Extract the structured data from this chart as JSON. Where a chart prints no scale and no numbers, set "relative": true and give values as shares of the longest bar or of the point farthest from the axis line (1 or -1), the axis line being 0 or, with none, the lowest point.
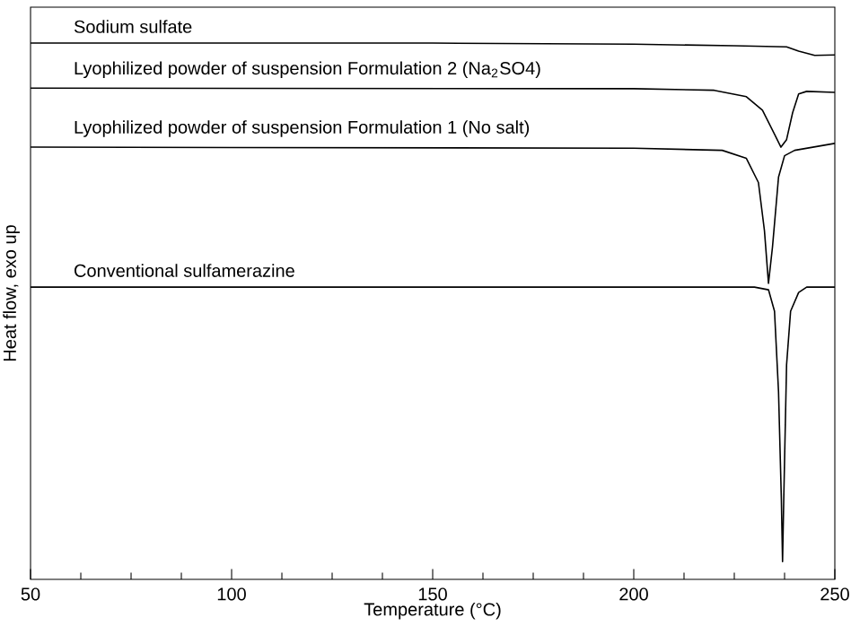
{
  "chart_data": {
    "type": "line",
    "xlabel": "Temperature (°C)",
    "ylabel": "Heat flow, exo up",
    "relative": true,
    "xlim": [
      50,
      250
    ],
    "xticks": [
      50,
      100,
      150,
      200,
      250
    ],
    "legend": false,
    "marker": "none",
    "line_style": "solid",
    "grid": false,
    "series": [
      {
        "name": "Sodium sulfate",
        "color": "#000000",
        "x": [
          50,
          150,
          200,
          225,
          238,
          241,
          245,
          250
        ],
        "values": [
          1.0,
          1.0,
          0.998,
          0.995,
          0.993,
          0.985,
          0.977,
          0.978
        ]
      },
      {
        "name": "Lyophilized powder of suspension Formulation 2 (Na$_{2}$SO4)",
        "color": "#000000",
        "x": [
          50,
          200,
          220,
          228,
          232,
          235,
          236.6,
          238,
          239.5,
          241,
          243,
          250
        ],
        "values": [
          0.916,
          0.915,
          0.912,
          0.9,
          0.875,
          0.83,
          0.806,
          0.82,
          0.87,
          0.905,
          0.91,
          0.908
        ]
      },
      {
        "name": "Lyophilized powder of suspension Formulation 1 (No salt)",
        "color": "#000000",
        "x": [
          50,
          200,
          222,
          228,
          231,
          232.5,
          233.5,
          234.5,
          236,
          237.5,
          240,
          250
        ],
        "values": [
          0.806,
          0.804,
          0.8,
          0.785,
          0.74,
          0.65,
          0.552,
          0.62,
          0.75,
          0.79,
          0.8,
          0.813
        ]
      },
      {
        "name": "Conventional sulfamerazine",
        "color": "#000000",
        "x": [
          50,
          230,
          233.5,
          235,
          236,
          236.7,
          237,
          237.3,
          238,
          239,
          241,
          243,
          250
        ],
        "values": [
          0.545,
          0.545,
          0.54,
          0.5,
          0.35,
          0.15,
          0.033,
          0.15,
          0.4,
          0.5,
          0.535,
          0.545,
          0.545
        ]
      }
    ]
  }
}
